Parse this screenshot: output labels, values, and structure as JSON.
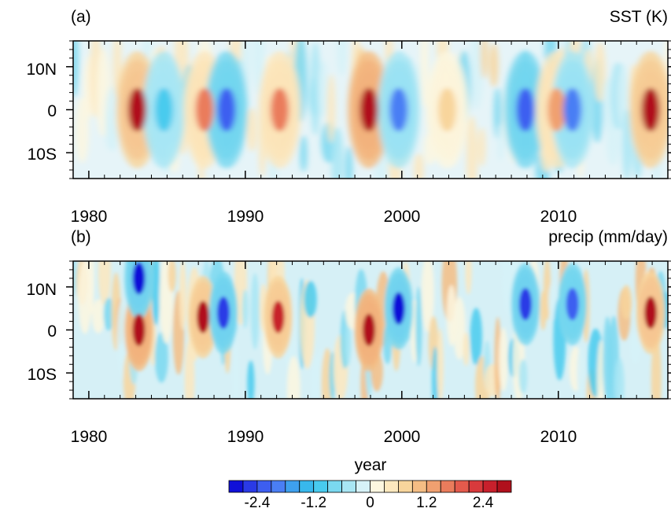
{
  "chart_data": [
    {
      "type": "heatmap",
      "panel_label": "(a)",
      "variable_label": "SST (K)",
      "x_ticks": [
        1980,
        1990,
        2000,
        2010
      ],
      "x_range": [
        1979,
        2017
      ],
      "y_ticks": [
        {
          "lat": 10,
          "label": "10N"
        },
        {
          "lat": 0,
          "label": "0"
        },
        {
          "lat": -10,
          "label": "10S"
        }
      ],
      "y_range": [
        -16,
        16
      ],
      "anomalies": [
        {
          "year": 1983.1,
          "lat": 0,
          "value": 3.0
        },
        {
          "year": 1984.8,
          "lat": 0,
          "value": -1.2
        },
        {
          "year": 1987.4,
          "lat": 0,
          "value": 1.6
        },
        {
          "year": 1988.8,
          "lat": 0,
          "value": -2.4
        },
        {
          "year": 1992.2,
          "lat": 0,
          "value": 1.6
        },
        {
          "year": 1997.9,
          "lat": 0,
          "value": 3.2
        },
        {
          "year": 1999.8,
          "lat": 0,
          "value": -2.0
        },
        {
          "year": 2002.9,
          "lat": 0,
          "value": 0.8
        },
        {
          "year": 2007.9,
          "lat": 0,
          "value": -2.2
        },
        {
          "year": 2009.9,
          "lat": 0,
          "value": 1.2
        },
        {
          "year": 2010.9,
          "lat": 0,
          "value": -2.0
        },
        {
          "year": 2015.9,
          "lat": 0,
          "value": 2.8
        }
      ]
    },
    {
      "type": "heatmap",
      "panel_label": "(b)",
      "variable_label": "precip (mm/day)",
      "x_ticks": [
        1980,
        1990,
        2000,
        2010
      ],
      "x_range": [
        1979,
        2017
      ],
      "y_ticks": [
        {
          "lat": 10,
          "label": "10N"
        },
        {
          "lat": 0,
          "label": "0"
        },
        {
          "lat": -10,
          "label": "10S"
        }
      ],
      "y_range": [
        -16,
        16
      ],
      "anomalies": [
        {
          "year": 1983.2,
          "lat": 0,
          "value": 3.2
        },
        {
          "year": 1983.2,
          "lat": 12,
          "value": -3.0
        },
        {
          "year": 1987.3,
          "lat": 3,
          "value": 2.8
        },
        {
          "year": 1988.6,
          "lat": 4,
          "value": -2.6
        },
        {
          "year": 1992.1,
          "lat": 3,
          "value": 2.6
        },
        {
          "year": 1997.9,
          "lat": 0,
          "value": 3.2
        },
        {
          "year": 1999.8,
          "lat": 5,
          "value": -2.8
        },
        {
          "year": 2007.9,
          "lat": 6,
          "value": -2.6
        },
        {
          "year": 2010.9,
          "lat": 6,
          "value": -2.4
        },
        {
          "year": 2015.9,
          "lat": 4,
          "value": 3.0
        }
      ]
    }
  ],
  "xlabel": "year",
  "colorbar": {
    "levels": [
      -3.0,
      -2.7,
      -2.4,
      -2.1,
      -1.8,
      -1.5,
      -1.2,
      -0.9,
      -0.6,
      -0.3,
      0,
      0.3,
      0.6,
      0.9,
      1.2,
      1.5,
      1.8,
      2.1,
      2.4,
      2.7,
      3.0
    ],
    "labels": [
      "-2.4",
      "-1.2",
      "0",
      "1.2",
      "2.4"
    ],
    "label_values": [
      -2.4,
      -1.2,
      0,
      1.2,
      2.4
    ],
    "colors": [
      "#1010d8",
      "#2a3ae6",
      "#3d5ef0",
      "#4a7ef4",
      "#3ea0ee",
      "#38b8ec",
      "#48cbee",
      "#7ad8f0",
      "#a8e6f4",
      "#d6f2f8",
      "#fdf7e0",
      "#fde8be",
      "#f8d59c",
      "#f4bd84",
      "#f0a070",
      "#ea7c5c",
      "#e45a4c",
      "#d83a3c",
      "#c8202c",
      "#b0101c"
    ]
  }
}
